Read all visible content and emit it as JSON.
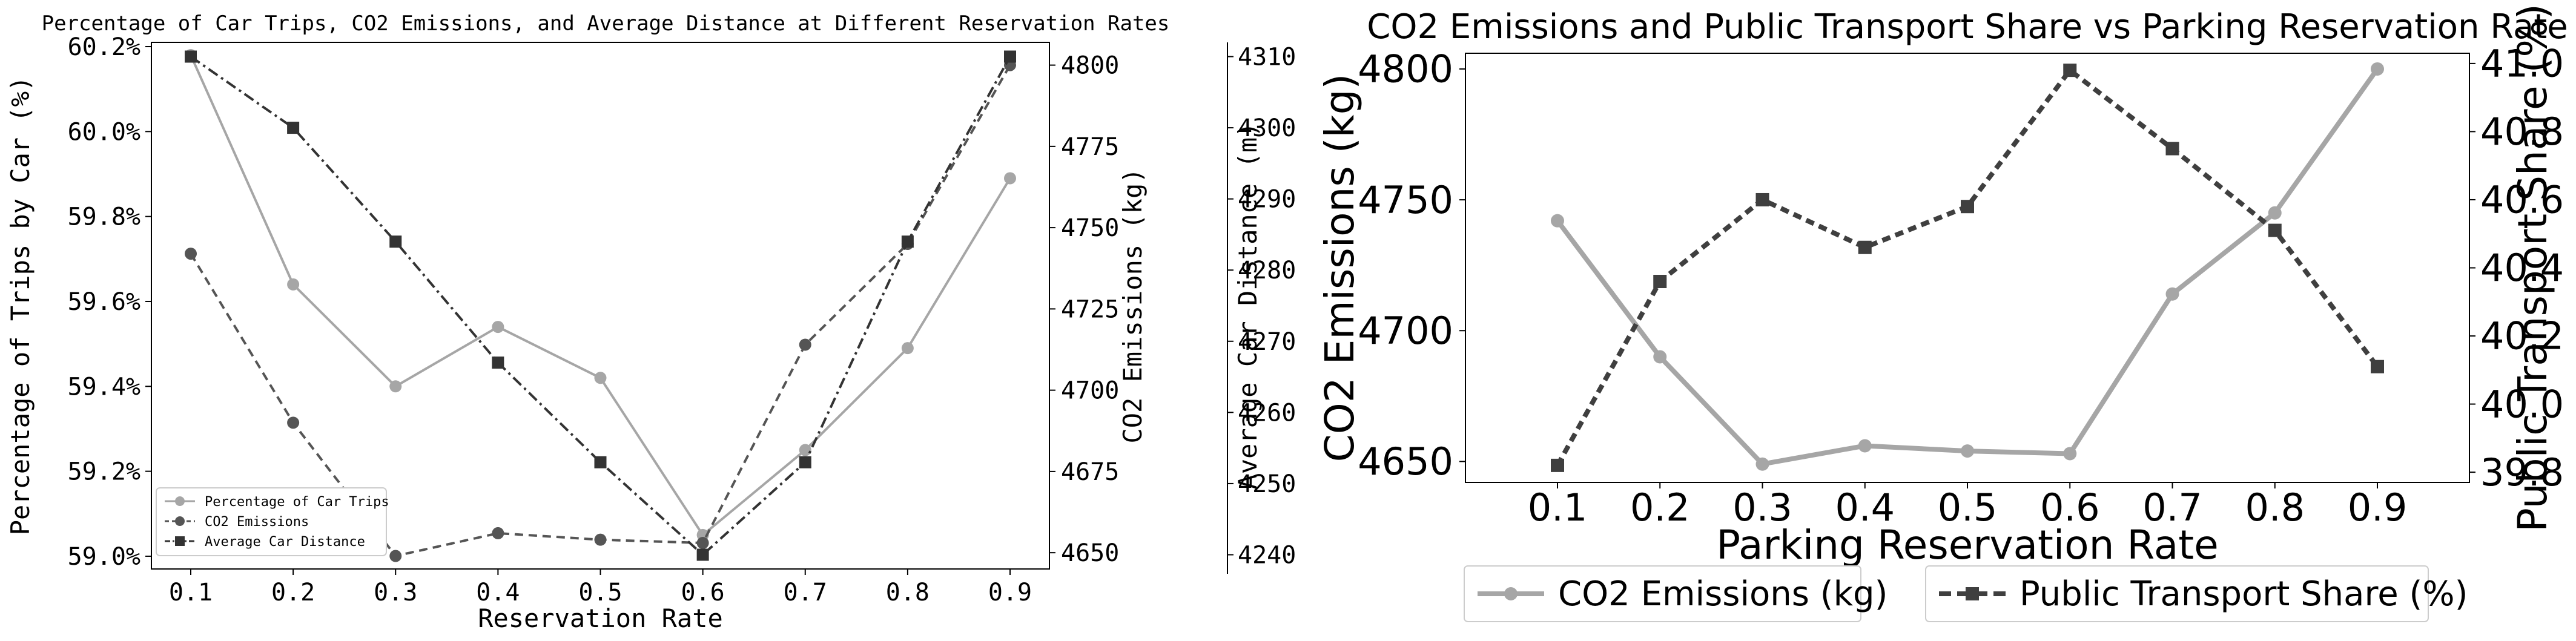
{
  "chart_data": [
    {
      "type": "line",
      "title": "Percentage of Car Trips, CO2 Emissions, and Average Distance at Different Reservation Rates",
      "xlabel": "Reservation Rate",
      "x": [
        0.1,
        0.2,
        0.3,
        0.4,
        0.5,
        0.6,
        0.7,
        0.8,
        0.9
      ],
      "x_tick_labels": [
        "0.1",
        "0.2",
        "0.3",
        "0.4",
        "0.5",
        "0.6",
        "0.7",
        "0.8",
        "0.9"
      ],
      "axes": [
        {
          "label": "Percentage of Trips by Car (%)",
          "side": "left",
          "ylim": [
            58.97,
            60.21
          ],
          "ticks": [
            59.0,
            59.2,
            59.4,
            59.6,
            59.8,
            60.0,
            60.2
          ],
          "tick_labels": [
            "59.0%",
            "59.2%",
            "59.4%",
            "59.6%",
            "59.8%",
            "60.0%",
            "60.2%"
          ]
        },
        {
          "label": "CO2 Emissions (kg)",
          "side": "right",
          "ylim": [
            4645,
            4807
          ],
          "ticks": [
            4650,
            4675,
            4700,
            4725,
            4750,
            4775,
            4800
          ],
          "tick_labels": [
            "4650",
            "4675",
            "4700",
            "4725",
            "4750",
            "4775",
            "4800"
          ]
        },
        {
          "label": "Average Car Distance (m)",
          "side": "right-outer",
          "ylim": [
            4238,
            4312
          ],
          "ticks": [
            4240,
            4250,
            4260,
            4270,
            4280,
            4290,
            4300,
            4310
          ],
          "tick_labels": [
            "4240",
            "4250",
            "4260",
            "4270",
            "4280",
            "4290",
            "4300",
            "4310"
          ]
        }
      ],
      "series": [
        {
          "name": "Percentage of Car Trips",
          "axis": 0,
          "color": "#a6a6a6",
          "linestyle": "solid",
          "marker": "circle",
          "values": [
            60.18,
            59.64,
            59.4,
            59.54,
            59.42,
            59.05,
            59.25,
            59.49,
            59.89
          ]
        },
        {
          "name": "CO2 Emissions",
          "axis": 1,
          "color": "#555555",
          "linestyle": "dashed",
          "marker": "circle",
          "values": [
            4742,
            4690,
            4649,
            4656,
            4654,
            4653,
            4714,
            4745,
            4800
          ]
        },
        {
          "name": "Average Car Distance",
          "axis": 2,
          "color": "#333333",
          "linestyle": "dashdot",
          "marker": "square",
          "values": [
            4310,
            4300,
            4284,
            4267,
            4253,
            4240,
            4253,
            4284,
            4310
          ]
        }
      ],
      "legend": "lower-left",
      "grid": false
    },
    {
      "type": "line",
      "title": "CO2 Emissions and Public Transport Share vs Parking Reservation Rate",
      "xlabel": "Parking Reservation Rate",
      "x": [
        0.1,
        0.2,
        0.3,
        0.4,
        0.5,
        0.6,
        0.7,
        0.8,
        0.9
      ],
      "x_tick_labels": [
        "0.1",
        "0.2",
        "0.3",
        "0.4",
        "0.5",
        "0.6",
        "0.7",
        "0.8",
        "0.9"
      ],
      "axes": [
        {
          "label": "CO2 Emissions (kg)",
          "side": "left",
          "ylim": [
            4642,
            4806
          ],
          "ticks": [
            4650,
            4700,
            4750,
            4800
          ],
          "tick_labels": [
            "4650",
            "4700",
            "4750",
            "4800"
          ]
        },
        {
          "label": "Public Transport Share (%)",
          "side": "right",
          "ylim": [
            39.77,
            41.03
          ],
          "ticks": [
            39.8,
            40.0,
            40.2,
            40.4,
            40.6,
            40.8,
            41.0
          ],
          "tick_labels": [
            "39.8",
            "40.0",
            "40.2",
            "40.4",
            "40.6",
            "40.8",
            "41.0"
          ]
        }
      ],
      "series": [
        {
          "name": "CO2 Emissions (kg)",
          "axis": 0,
          "color": "#a6a6a6",
          "linestyle": "solid",
          "marker": "circle",
          "values": [
            4742,
            4690,
            4649,
            4656,
            4654,
            4653,
            4714,
            4745,
            4800
          ]
        },
        {
          "name": "Public Transport Share (%)",
          "axis": 1,
          "color": "#3f3f3f",
          "linestyle": "dashed",
          "marker": "square",
          "values": [
            39.82,
            40.36,
            40.6,
            40.46,
            40.58,
            40.98,
            40.75,
            40.51,
            40.11
          ]
        }
      ],
      "legend": "bottom",
      "grid": false
    }
  ]
}
